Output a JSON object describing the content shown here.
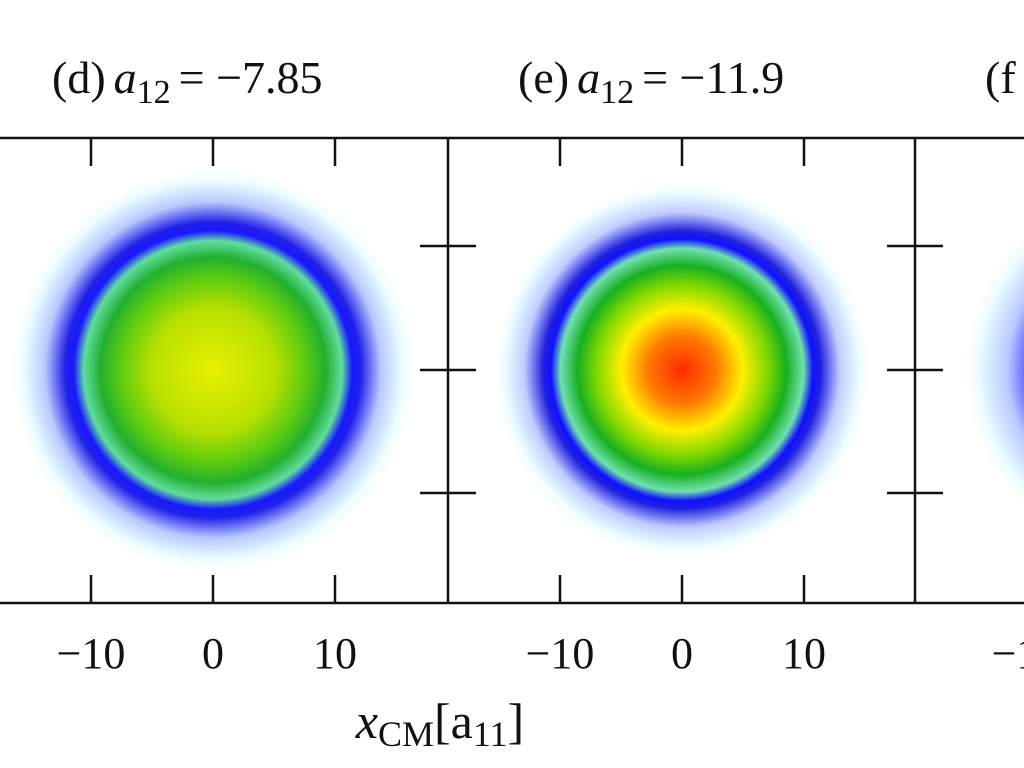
{
  "chart_data": {
    "type": "heatmap",
    "title": "",
    "xlabel_main": "x",
    "xlabel_sub": "CM",
    "xlabel_unit": "[a",
    "xlabel_unit_sub": "11",
    "xlabel_close": "]",
    "x_ticks": [
      "−10",
      "0",
      "10"
    ],
    "x_tick_values": [
      -10,
      0,
      10
    ],
    "panels": [
      {
        "label": "(d)",
        "param": "a",
        "param_sub": "12",
        "eq": "= −7.85",
        "a12": -7.85,
        "peak_color": "#e6f000"
      },
      {
        "label": "(e)",
        "param": "a",
        "param_sub": "12",
        "eq": "= −11.9",
        "a12": -11.9,
        "peak_color": "#ff2a00"
      },
      {
        "label": "(f",
        "param": "",
        "param_sub": "",
        "eq": "",
        "a12": null,
        "peak_color": "#2020ff"
      }
    ]
  }
}
